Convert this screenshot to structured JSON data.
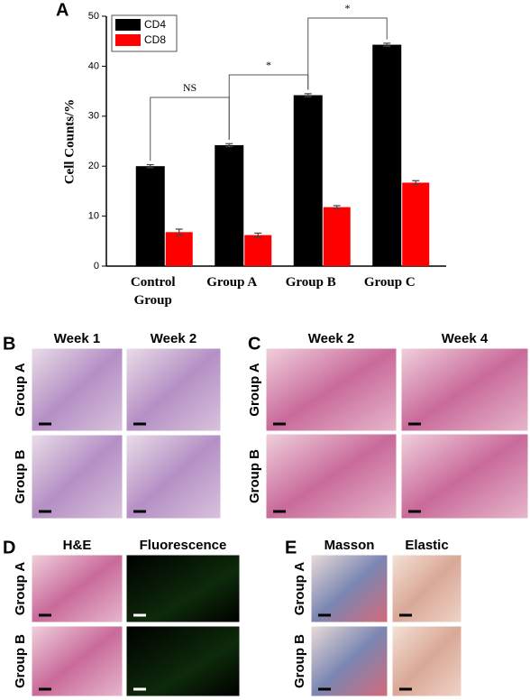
{
  "chart_data": {
    "type": "bar",
    "panel_label": "A",
    "y_label": "Cell Counts/%",
    "categories": [
      "Control Group",
      "Group A",
      "Group B",
      "Group C"
    ],
    "series": [
      {
        "name": "CD4",
        "color": "#000000",
        "values": [
          20,
          24.2,
          34.2,
          44.3
        ],
        "errors": [
          0.3,
          0.3,
          0.3,
          0.3
        ]
      },
      {
        "name": "CD8",
        "color": "#ff0000",
        "values": [
          6.8,
          6.2,
          11.8,
          16.7
        ],
        "errors": [
          0.6,
          0.4,
          0.3,
          0.4
        ]
      }
    ],
    "ylim": [
      0,
      50
    ],
    "yticks": [
      0,
      10,
      20,
      30,
      40,
      50
    ],
    "annotations": [
      "NS",
      "*",
      "*"
    ]
  },
  "panels": [
    {
      "label": "B",
      "columns": [
        "Week 1",
        "Week 2"
      ],
      "rows": [
        "Group A",
        "Group B"
      ]
    },
    {
      "label": "C",
      "columns": [
        "Week 2",
        "Week 4"
      ],
      "rows": [
        "Group A",
        "Group B"
      ]
    },
    {
      "label": "D",
      "columns": [
        "H&E",
        "Fluorescence"
      ],
      "rows": [
        "Group A",
        "Group B"
      ]
    },
    {
      "label": "E",
      "columns": [
        "Masson",
        "Elastic"
      ],
      "rows": [
        "Group A",
        "Group B"
      ]
    }
  ]
}
